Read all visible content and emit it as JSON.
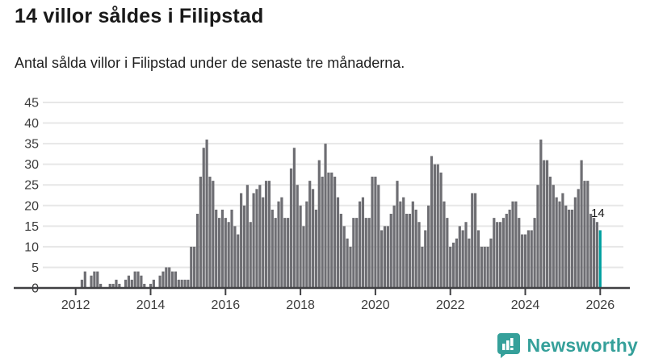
{
  "header": {
    "title": "14 villor såldes i Filipstad",
    "subtitle": "Antal sålda villor i Filipstad under de senaste tre månaderna."
  },
  "chart_data": {
    "type": "bar",
    "title": "14 villor såldes i Filipstad",
    "ylabel": "",
    "xlabel": "",
    "ylim": [
      0,
      45
    ],
    "y_ticks": [
      0,
      5,
      10,
      15,
      20,
      25,
      30,
      35,
      40,
      45
    ],
    "x_ticks": [
      2012,
      2014,
      2016,
      2018,
      2020,
      2022,
      2024,
      2026
    ],
    "grid": "horizontal",
    "bar_color": "#6e6e73",
    "highlight_color": "#00a0a0",
    "annotation": "14",
    "start_month": "2012-03",
    "end_month": "2026-01",
    "values": [
      2,
      4,
      0,
      3,
      4,
      4,
      1,
      0,
      0,
      1,
      1,
      2,
      1,
      0,
      2,
      3,
      2,
      4,
      4,
      3,
      1,
      0,
      1,
      2,
      0,
      3,
      4,
      5,
      5,
      4,
      4,
      2,
      2,
      2,
      2,
      10,
      10,
      18,
      27,
      34,
      36,
      27,
      26,
      19,
      17,
      19,
      17,
      16,
      19,
      15,
      13,
      23,
      20,
      25,
      16,
      23,
      24,
      25,
      22,
      26,
      26,
      19,
      17,
      21,
      22,
      17,
      17,
      29,
      34,
      25,
      20,
      15,
      21,
      26,
      24,
      19,
      31,
      27,
      35,
      28,
      28,
      27,
      22,
      18,
      15,
      12,
      10,
      17,
      17,
      21,
      22,
      17,
      17,
      27,
      27,
      25,
      14,
      15,
      15,
      18,
      20,
      26,
      21,
      22,
      18,
      18,
      21,
      19,
      16,
      10,
      14,
      20,
      32,
      30,
      30,
      28,
      21,
      17,
      10,
      11,
      12,
      15,
      14,
      16,
      12,
      23,
      23,
      14,
      10,
      10,
      10,
      12,
      17,
      16,
      16,
      17,
      18,
      19,
      21,
      21,
      17,
      13,
      13,
      14,
      14,
      17,
      25,
      36,
      31,
      31,
      27,
      25,
      22,
      21,
      23,
      20,
      19,
      19,
      22,
      24,
      31,
      26,
      26,
      18,
      17,
      16,
      14
    ],
    "latest_value": 14
  },
  "logo": {
    "text": "Newsworthy"
  }
}
